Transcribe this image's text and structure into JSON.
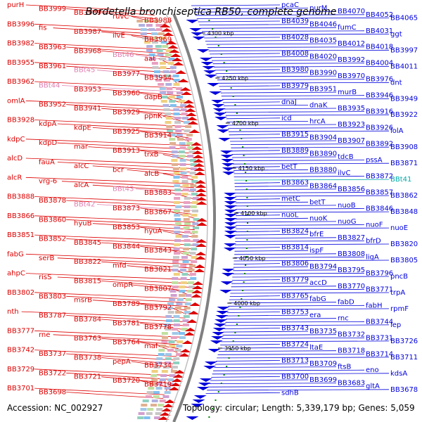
{
  "title": "Bordetella bronchiseptica RB50, complete genome",
  "footer": {
    "accession": "Accession: NC_002927",
    "topology": "Topology: circular; Length: 5,339,179 bp; Genes: 5,059"
  },
  "colors": {
    "forward_strand": "#dd0000",
    "reverse_strand": "#0000dd",
    "highlight_pink": "#e080b0",
    "highlight_cyan": "#00aaaa",
    "backbone": "#808080",
    "tick": "#008000"
  },
  "kbp_ticks": [
    "4300 kbp",
    "4250 kbp",
    "4200 kbp",
    "4150 kbp",
    "4100 kbp",
    "4050 kbp",
    "4000 kbp",
    "3950 kbp"
  ],
  "left_labels": [
    {
      "text": "purH",
      "color": "red"
    },
    {
      "text": "BB3999",
      "color": "red"
    },
    {
      "text": "BB3989",
      "color": "red"
    },
    {
      "text": "ruvC",
      "color": "red"
    },
    {
      "text": "BB3988",
      "color": "red"
    },
    {
      "text": "BB3996",
      "color": "red"
    },
    {
      "text": "fis",
      "color": "red"
    },
    {
      "text": "BB3987",
      "color": "red"
    },
    {
      "text": "ilvE",
      "color": "red"
    },
    {
      "text": "BB3969",
      "color": "red"
    },
    {
      "text": "BB3982",
      "color": "red"
    },
    {
      "text": "BB3963",
      "color": "red"
    },
    {
      "text": "BB3968",
      "color": "red"
    },
    {
      "text": "BBt46",
      "color": "pink"
    },
    {
      "text": "aat",
      "color": "red"
    },
    {
      "text": "BB3955",
      "color": "red"
    },
    {
      "text": "BB3961",
      "color": "red"
    },
    {
      "text": "BBt45",
      "color": "pink"
    },
    {
      "text": "BB3977",
      "color": "red"
    },
    {
      "text": "BB3954",
      "color": "red"
    },
    {
      "text": "BB3962",
      "color": "red"
    },
    {
      "text": "BBt44",
      "color": "pink"
    },
    {
      "text": "BB3953",
      "color": "red"
    },
    {
      "text": "BB3960",
      "color": "red"
    },
    {
      "text": "dapB",
      "color": "red"
    },
    {
      "text": "omlA",
      "color": "red"
    },
    {
      "text": "BB3952",
      "color": "red"
    },
    {
      "text": "BB3941",
      "color": "red"
    },
    {
      "text": "BB3929",
      "color": "red"
    },
    {
      "text": "ppnK",
      "color": "red"
    },
    {
      "text": "BB3928",
      "color": "red"
    },
    {
      "text": "kdpA",
      "color": "red"
    },
    {
      "text": "kdpE",
      "color": "red"
    },
    {
      "text": "BB3925",
      "color": "red"
    },
    {
      "text": "BB3914",
      "color": "red"
    },
    {
      "text": "kdpC",
      "color": "red"
    },
    {
      "text": "kdpD",
      "color": "red"
    },
    {
      "text": "mar",
      "color": "red"
    },
    {
      "text": "BB3913",
      "color": "red"
    },
    {
      "text": "trxB",
      "color": "red"
    },
    {
      "text": "alcD",
      "color": "red"
    },
    {
      "text": "fauA",
      "color": "red"
    },
    {
      "text": "alcC",
      "color": "red"
    },
    {
      "text": "bcr",
      "color": "red"
    },
    {
      "text": "alcB",
      "color": "red"
    },
    {
      "text": "alcR",
      "color": "red"
    },
    {
      "text": "vrg-6",
      "color": "red"
    },
    {
      "text": "alcA",
      "color": "red"
    },
    {
      "text": "BBt43",
      "color": "pink"
    },
    {
      "text": "BB3883",
      "color": "red"
    },
    {
      "text": "BB3888",
      "color": "red"
    },
    {
      "text": "BB3878",
      "color": "red"
    },
    {
      "text": "BBt42",
      "color": "pink"
    },
    {
      "text": "BB3873",
      "color": "red"
    },
    {
      "text": "BB3867",
      "color": "red"
    },
    {
      "text": "BB3866",
      "color": "red"
    },
    {
      "text": "BB3860",
      "color": "red"
    },
    {
      "text": "hyuB",
      "color": "red"
    },
    {
      "text": "BB3853",
      "color": "red"
    },
    {
      "text": "hyuA",
      "color": "red"
    },
    {
      "text": "BB3851",
      "color": "red"
    },
    {
      "text": "BB3852",
      "color": "red"
    },
    {
      "text": "BB3845",
      "color": "red"
    },
    {
      "text": "BB3844",
      "color": "red"
    },
    {
      "text": "BB3843",
      "color": "red"
    },
    {
      "text": "fabG",
      "color": "red"
    },
    {
      "text": "serB",
      "color": "red"
    },
    {
      "text": "BB3822",
      "color": "red"
    },
    {
      "text": "mfd",
      "color": "red"
    },
    {
      "text": "BB3821",
      "color": "red"
    },
    {
      "text": "ahpC",
      "color": "red"
    },
    {
      "text": "risS",
      "color": "red"
    },
    {
      "text": "BB3815",
      "color": "red"
    },
    {
      "text": "ompR",
      "color": "red"
    },
    {
      "text": "BB3807",
      "color": "red"
    },
    {
      "text": "BB3802",
      "color": "red"
    },
    {
      "text": "BB3803",
      "color": "red"
    },
    {
      "text": "msrB",
      "color": "red"
    },
    {
      "text": "BB3789",
      "color": "red"
    },
    {
      "text": "BB3792",
      "color": "red"
    },
    {
      "text": "nth",
      "color": "red"
    },
    {
      "text": "BB3787",
      "color": "red"
    },
    {
      "text": "BB3784",
      "color": "red"
    },
    {
      "text": "BB3781",
      "color": "red"
    },
    {
      "text": "BB3778",
      "color": "red"
    },
    {
      "text": "BB3777",
      "color": "red"
    },
    {
      "text": "rne",
      "color": "red"
    },
    {
      "text": "BB3763",
      "color": "red"
    },
    {
      "text": "BB3764",
      "color": "red"
    },
    {
      "text": "maf",
      "color": "red"
    },
    {
      "text": "BB3742",
      "color": "red"
    },
    {
      "text": "BB3737",
      "color": "red"
    },
    {
      "text": "BB3738",
      "color": "red"
    },
    {
      "text": "pepA",
      "color": "red"
    },
    {
      "text": "BB3734",
      "color": "red"
    },
    {
      "text": "BB3729",
      "color": "red"
    },
    {
      "text": "BB3722",
      "color": "red"
    },
    {
      "text": "BB3721",
      "color": "red"
    },
    {
      "text": "BB3720",
      "color": "red"
    },
    {
      "text": "BB3719",
      "color": "red"
    },
    {
      "text": "BB3701",
      "color": "red"
    },
    {
      "text": "BB3698",
      "color": "red"
    }
  ],
  "right_labels": [
    {
      "text": "pcaC",
      "color": "blue"
    },
    {
      "text": "purM",
      "color": "blue"
    },
    {
      "text": "BB4070",
      "color": "blue"
    },
    {
      "text": "BB4052",
      "color": "blue"
    },
    {
      "text": "BB4065",
      "color": "blue"
    },
    {
      "text": "BB4039",
      "color": "blue"
    },
    {
      "text": "BB4046",
      "color": "blue"
    },
    {
      "text": "fumC",
      "color": "blue"
    },
    {
      "text": "BB4031",
      "color": "blue"
    },
    {
      "text": "ggt",
      "color": "blue"
    },
    {
      "text": "BB4028",
      "color": "blue"
    },
    {
      "text": "BB4035",
      "color": "blue"
    },
    {
      "text": "BB4012",
      "color": "blue"
    },
    {
      "text": "BB4018",
      "color": "blue"
    },
    {
      "text": "BB3997",
      "color": "blue"
    },
    {
      "text": "BB4008",
      "color": "blue"
    },
    {
      "text": "BB4020",
      "color": "blue"
    },
    {
      "text": "BB3992",
      "color": "blue"
    },
    {
      "text": "BB4004",
      "color": "blue"
    },
    {
      "text": "BB4011",
      "color": "blue"
    },
    {
      "text": "BB3980",
      "color": "blue"
    },
    {
      "text": "BB3990",
      "color": "blue"
    },
    {
      "text": "BB3970",
      "color": "blue"
    },
    {
      "text": "BB3976",
      "color": "blue"
    },
    {
      "text": "dnt",
      "color": "blue"
    },
    {
      "text": "BB3979",
      "color": "blue"
    },
    {
      "text": "BB3951",
      "color": "blue"
    },
    {
      "text": "murB",
      "color": "blue"
    },
    {
      "text": "BB3946",
      "color": "blue"
    },
    {
      "text": "BB3949",
      "color": "blue"
    },
    {
      "text": "dnaJ",
      "color": "blue"
    },
    {
      "text": "dnaK",
      "color": "blue"
    },
    {
      "text": "BB3935",
      "color": "blue"
    },
    {
      "text": "BB3916",
      "color": "blue"
    },
    {
      "text": "BB3922",
      "color": "blue"
    },
    {
      "text": "icd",
      "color": "blue"
    },
    {
      "text": "hrcA",
      "color": "blue"
    },
    {
      "text": "BB3923",
      "color": "blue"
    },
    {
      "text": "BB3926",
      "color": "blue"
    },
    {
      "text": "lolA",
      "color": "blue"
    },
    {
      "text": "BB3915",
      "color": "blue"
    },
    {
      "text": "BB3904",
      "color": "blue"
    },
    {
      "text": "BB3907",
      "color": "blue"
    },
    {
      "text": "BB3892",
      "color": "blue"
    },
    {
      "text": "BB3908",
      "color": "blue"
    },
    {
      "text": "BB3889",
      "color": "blue"
    },
    {
      "text": "BB3890",
      "color": "blue"
    },
    {
      "text": "tdcB",
      "color": "blue"
    },
    {
      "text": "pssA",
      "color": "blue"
    },
    {
      "text": "BB3871",
      "color": "blue"
    },
    {
      "text": "betT",
      "color": "blue"
    },
    {
      "text": "BB3880",
      "color": "blue"
    },
    {
      "text": "ilvC",
      "color": "blue"
    },
    {
      "text": "BB3872",
      "color": "blue"
    },
    {
      "text": "BBt41",
      "color": "cyan"
    },
    {
      "text": "BB3863",
      "color": "blue"
    },
    {
      "text": "BB3864",
      "color": "blue"
    },
    {
      "text": "BB3856",
      "color": "blue"
    },
    {
      "text": "BB3857",
      "color": "blue"
    },
    {
      "text": "BB3862",
      "color": "blue"
    },
    {
      "text": "metC",
      "color": "blue"
    },
    {
      "text": "betT",
      "color": "blue"
    },
    {
      "text": "nuoB",
      "color": "blue"
    },
    {
      "text": "BB3846",
      "color": "blue"
    },
    {
      "text": "BB3848",
      "color": "blue"
    },
    {
      "text": "nuoL",
      "color": "blue"
    },
    {
      "text": "nuoK",
      "color": "blue"
    },
    {
      "text": "nuoG",
      "color": "blue"
    },
    {
      "text": "nuoF",
      "color": "blue"
    },
    {
      "text": "nuoE",
      "color": "blue"
    },
    {
      "text": "BB3824",
      "color": "blue"
    },
    {
      "text": "bfrE",
      "color": "blue"
    },
    {
      "text": "BB3827",
      "color": "blue"
    },
    {
      "text": "bfrD",
      "color": "blue"
    },
    {
      "text": "BB3820",
      "color": "blue"
    },
    {
      "text": "BB3814",
      "color": "blue"
    },
    {
      "text": "ispF",
      "color": "blue"
    },
    {
      "text": "BB3808",
      "color": "blue"
    },
    {
      "text": "ligA",
      "color": "blue"
    },
    {
      "text": "BB3805",
      "color": "blue"
    },
    {
      "text": "BB3806",
      "color": "blue"
    },
    {
      "text": "BB3794",
      "color": "blue"
    },
    {
      "text": "BB3795",
      "color": "blue"
    },
    {
      "text": "BB3796",
      "color": "blue"
    },
    {
      "text": "pncB",
      "color": "blue"
    },
    {
      "text": "BB3779",
      "color": "blue"
    },
    {
      "text": "accD",
      "color": "blue"
    },
    {
      "text": "BB3770",
      "color": "blue"
    },
    {
      "text": "BB3771",
      "color": "blue"
    },
    {
      "text": "trpA",
      "color": "blue"
    },
    {
      "text": "BB3765",
      "color": "blue"
    },
    {
      "text": "fabG",
      "color": "blue"
    },
    {
      "text": "fabD",
      "color": "blue"
    },
    {
      "text": "fabH",
      "color": "blue"
    },
    {
      "text": "rpmF",
      "color": "blue"
    },
    {
      "text": "BB3753",
      "color": "blue"
    },
    {
      "text": "era",
      "color": "blue"
    },
    {
      "text": "rnc",
      "color": "blue"
    },
    {
      "text": "BB3744",
      "color": "blue"
    },
    {
      "text": "lep",
      "color": "blue"
    },
    {
      "text": "BB3743",
      "color": "blue"
    },
    {
      "text": "BB3735",
      "color": "blue"
    },
    {
      "text": "BB3732",
      "color": "blue"
    },
    {
      "text": "BB3731",
      "color": "blue"
    },
    {
      "text": "BB3726",
      "color": "blue"
    },
    {
      "text": "BB3724",
      "color": "blue"
    },
    {
      "text": "ltaE",
      "color": "blue"
    },
    {
      "text": "BB3718",
      "color": "blue"
    },
    {
      "text": "BB3714",
      "color": "blue"
    },
    {
      "text": "BB3711",
      "color": "blue"
    },
    {
      "text": "BB3713",
      "color": "blue"
    },
    {
      "text": "BB3709",
      "color": "blue"
    },
    {
      "text": "ftsB",
      "color": "blue"
    },
    {
      "text": "eno",
      "color": "blue"
    },
    {
      "text": "kdsA",
      "color": "blue"
    },
    {
      "text": "BB3700",
      "color": "blue"
    },
    {
      "text": "BB3699",
      "color": "blue"
    },
    {
      "text": "BB3683",
      "color": "blue"
    },
    {
      "text": "gltA",
      "color": "blue"
    },
    {
      "text": "BB3678",
      "color": "blue"
    },
    {
      "text": "sdhB",
      "color": "blue"
    }
  ]
}
